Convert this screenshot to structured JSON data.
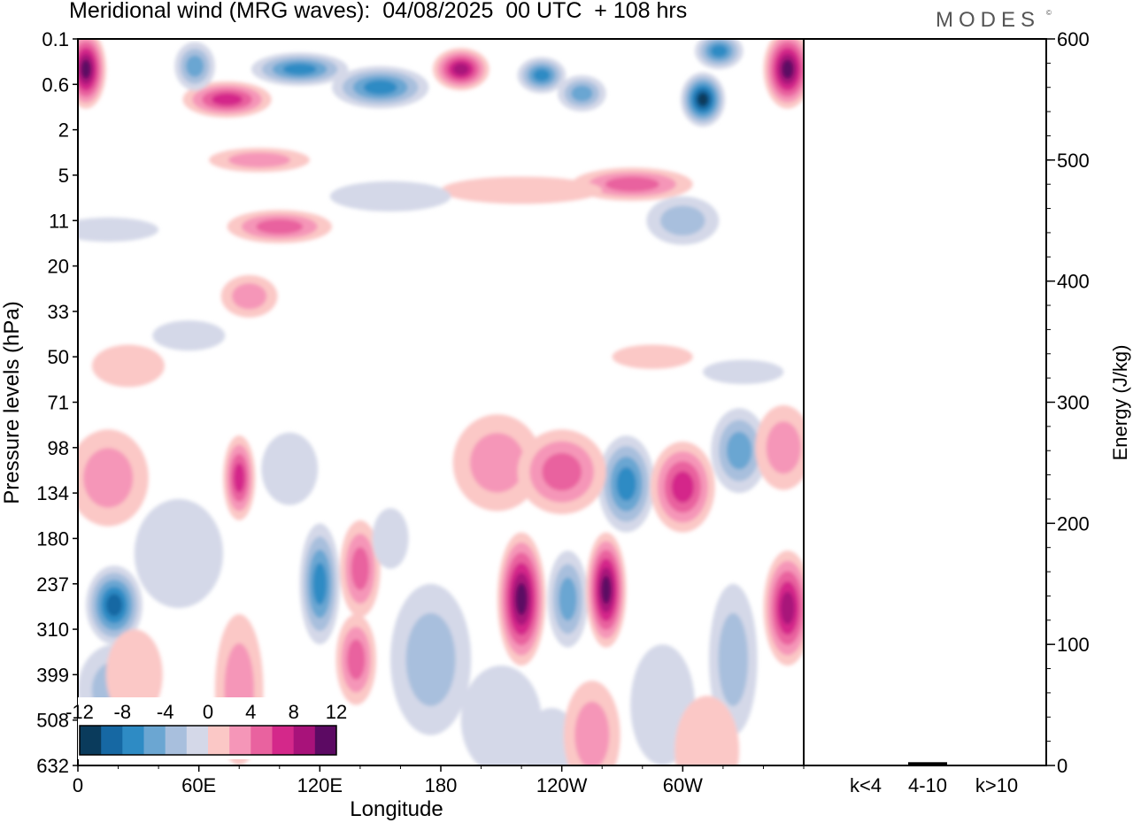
{
  "header": {
    "title": "Meridional wind (MRG waves):  04/08/2025  00 UTC  + 108 hrs",
    "brand": "MODES",
    "brand_mark": "©"
  },
  "colors": {
    "neg": [
      "#0a3b5c",
      "#1668a3",
      "#2e8bc4",
      "#6ba6d2",
      "#a8bfdd",
      "#d4d8e8"
    ],
    "pos": [
      "#fbc8c6",
      "#f596b8",
      "#e9629f",
      "#d4288a",
      "#a8127a",
      "#5c0a63"
    ]
  },
  "chart_data": [
    {
      "type": "heatmap",
      "title": "Meridional wind (MRG waves):  04/08/2025  00 UTC  + 108 hrs",
      "xlabel": "Longitude",
      "ylabel": "Pressure levels (hPa)",
      "x_ticks": [
        "0",
        "60E",
        "120E",
        "180",
        "120W",
        "60W"
      ],
      "x_tick_values": [
        0,
        60,
        120,
        180,
        240,
        300
      ],
      "xlim": [
        0,
        360
      ],
      "y_ticks": [
        "0.1",
        "0.6",
        "2",
        "5",
        "11",
        "20",
        "33",
        "50",
        "71",
        "98",
        "134",
        "180",
        "237",
        "310",
        "399",
        "508",
        "632"
      ],
      "colorbar": {
        "labels": [
          "-12",
          "-8",
          "-4",
          "0",
          "4",
          "8",
          "12"
        ],
        "levels": [
          -12,
          -10,
          -8,
          -6,
          -4,
          -2,
          0,
          2,
          4,
          6,
          8,
          10,
          12
        ]
      },
      "features": [
        {
          "lon": 4,
          "lev": 1.0,
          "value": 15,
          "wx": 10,
          "wy": 1.3
        },
        {
          "lon": 352,
          "lev": 1.0,
          "value": 15,
          "wx": 12,
          "wy": 1.3
        },
        {
          "lon": 310,
          "lev": 2.0,
          "value": -13,
          "wx": 11,
          "wy": 0.9
        },
        {
          "lon": 318,
          "lev": 0.4,
          "value": -8,
          "wx": 12,
          "wy": 0.6
        },
        {
          "lon": 230,
          "lev": 1.2,
          "value": -9,
          "wx": 12,
          "wy": 0.6
        },
        {
          "lon": 250,
          "lev": 1.8,
          "value": -6,
          "wx": 12,
          "wy": 0.6
        },
        {
          "lon": 74,
          "lev": 2.0,
          "value": 9,
          "wx": 22,
          "wy": 0.6
        },
        {
          "lon": 58,
          "lev": 0.9,
          "value": -7,
          "wx": 10,
          "wy": 0.8
        },
        {
          "lon": 110,
          "lev": 1.0,
          "value": -8,
          "wx": 24,
          "wy": 0.55
        },
        {
          "lon": 150,
          "lev": 1.6,
          "value": -9,
          "wx": 24,
          "wy": 0.7
        },
        {
          "lon": 190,
          "lev": 1.0,
          "value": 10,
          "wx": 14,
          "wy": 0.7
        },
        {
          "lon": 275,
          "lev": 4.8,
          "value": 6,
          "wx": 30,
          "wy": 0.55
        },
        {
          "lon": 90,
          "lev": 4.0,
          "value": 5,
          "wx": 25,
          "wy": 0.4
        },
        {
          "lon": 100,
          "lev": 6.2,
          "value": 6,
          "wx": 26,
          "wy": 0.55
        },
        {
          "lon": 220,
          "lev": 5.0,
          "value": 3,
          "wx": 40,
          "wy": 0.45
        },
        {
          "lon": 155,
          "lev": 5.2,
          "value": -3,
          "wx": 30,
          "wy": 0.5
        },
        {
          "lon": 300,
          "lev": 6.0,
          "value": -4,
          "wx": 18,
          "wy": 0.8
        },
        {
          "lon": 15,
          "lev": 6.3,
          "value": -3,
          "wx": 25,
          "wy": 0.4
        },
        {
          "lon": 85,
          "lev": 8.5,
          "value": 4,
          "wx": 14,
          "wy": 0.7
        },
        {
          "lon": 25,
          "lev": 10.8,
          "value": 3,
          "wx": 18,
          "wy": 0.7
        },
        {
          "lon": 55,
          "lev": 9.8,
          "value": -3,
          "wx": 18,
          "wy": 0.5
        },
        {
          "lon": 330,
          "lev": 11.0,
          "value": -3,
          "wx": 20,
          "wy": 0.4
        },
        {
          "lon": 285,
          "lev": 10.5,
          "value": 3,
          "wx": 20,
          "wy": 0.4
        },
        {
          "lon": 80,
          "lev": 14.5,
          "value": 9,
          "wx": 8,
          "wy": 1.4
        },
        {
          "lon": 15,
          "lev": 14.5,
          "value": 4,
          "wx": 20,
          "wy": 1.6
        },
        {
          "lon": 50,
          "lev": 17,
          "value": -3,
          "wx": 22,
          "wy": 1.8
        },
        {
          "lon": 105,
          "lev": 14.2,
          "value": -3,
          "wx": 14,
          "wy": 1.2
        },
        {
          "lon": 120,
          "lev": 18,
          "value": -8,
          "wx": 10,
          "wy": 2.0
        },
        {
          "lon": 140,
          "lev": 17.5,
          "value": 6,
          "wx": 10,
          "wy": 1.6
        },
        {
          "lon": 138,
          "lev": 20.5,
          "value": 6,
          "wx": 10,
          "wy": 1.5
        },
        {
          "lon": 155,
          "lev": 16.5,
          "value": -3,
          "wx": 9,
          "wy": 1.0
        },
        {
          "lon": 220,
          "lev": 18.5,
          "value": 12,
          "wx": 12,
          "wy": 2.2
        },
        {
          "lon": 208,
          "lev": 14.0,
          "value": 4,
          "wx": 22,
          "wy": 1.6
        },
        {
          "lon": 243,
          "lev": 18.5,
          "value": -7,
          "wx": 10,
          "wy": 1.6
        },
        {
          "lon": 262,
          "lev": 18.2,
          "value": 13,
          "wx": 10,
          "wy": 1.9
        },
        {
          "lon": 272,
          "lev": 14.7,
          "value": -9,
          "wx": 14,
          "wy": 1.6
        },
        {
          "lon": 240,
          "lev": 14.3,
          "value": 6,
          "wx": 22,
          "wy": 1.4
        },
        {
          "lon": 300,
          "lev": 14.8,
          "value": 8,
          "wx": 16,
          "wy": 1.5
        },
        {
          "lon": 328,
          "lev": 13.6,
          "value": -6,
          "wx": 14,
          "wy": 1.4
        },
        {
          "lon": 350,
          "lev": 13.5,
          "value": 5,
          "wx": 14,
          "wy": 1.4
        },
        {
          "lon": 352,
          "lev": 18.8,
          "value": 10,
          "wx": 12,
          "wy": 1.9
        },
        {
          "lon": 325,
          "lev": 20.5,
          "value": -4,
          "wx": 12,
          "wy": 2.5
        },
        {
          "lon": 18,
          "lev": 18.7,
          "value": -11,
          "wx": 14,
          "wy": 1.3
        },
        {
          "lon": 18,
          "lev": 21.5,
          "value": -4,
          "wx": 18,
          "wy": 1.5
        },
        {
          "lon": 28,
          "lev": 21.0,
          "value": 3,
          "wx": 14,
          "wy": 1.5
        },
        {
          "lon": 80,
          "lev": 21.5,
          "value": 4,
          "wx": 12,
          "wy": 2.5
        },
        {
          "lon": 175,
          "lev": 20.5,
          "value": -4,
          "wx": 20,
          "wy": 2.5
        },
        {
          "lon": 210,
          "lev": 22.5,
          "value": -3,
          "wx": 20,
          "wy": 1.8
        },
        {
          "lon": 235,
          "lev": 23.5,
          "value": -3,
          "wx": 14,
          "wy": 1.4
        },
        {
          "lon": 255,
          "lev": 23.0,
          "value": 4,
          "wx": 14,
          "wy": 1.8
        },
        {
          "lon": 290,
          "lev": 22.0,
          "value": -3,
          "wx": 16,
          "wy": 2.0
        },
        {
          "lon": 312,
          "lev": 23.5,
          "value": 3,
          "wx": 16,
          "wy": 1.8
        }
      ],
      "energy_panel": {
        "ylabel": "Energy (J/kg)",
        "ylim": [
          0,
          600
        ],
        "y_ticks": [
          0,
          100,
          200,
          300,
          400,
          500,
          600
        ],
        "categories": [
          "k<4",
          "4-10",
          "k>10"
        ],
        "values": [
          0,
          2,
          0
        ]
      }
    }
  ]
}
